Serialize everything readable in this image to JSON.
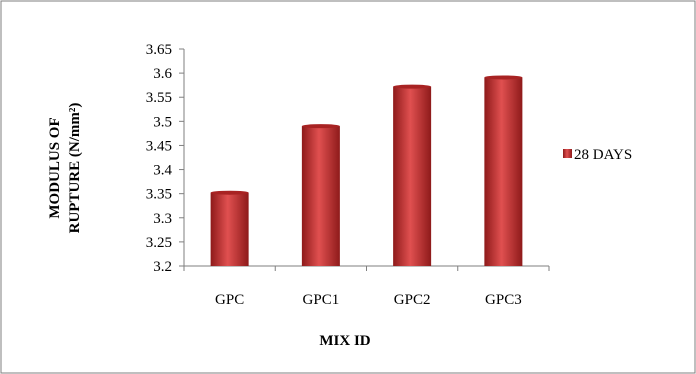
{
  "chart_data": {
    "type": "bar",
    "categories": [
      "GPC",
      "GPC1",
      "GPC2",
      "GPC3"
    ],
    "series": [
      {
        "name": "28 DAYS",
        "values": [
          3.352,
          3.49,
          3.572,
          3.591
        ],
        "color": "#c0392b"
      }
    ],
    "xlabel": "MIX ID",
    "ylabel_lines": [
      "MODULUS OF",
      "RUPTURE (N/mm²)"
    ],
    "ylim": [
      3.2,
      3.65
    ],
    "yticks": [
      "3.2",
      "3.25",
      "3.3",
      "3.35",
      "3.4",
      "3.45",
      "3.5",
      "3.55",
      "3.6",
      "3.65"
    ],
    "grid": false,
    "legend_position": "right"
  }
}
